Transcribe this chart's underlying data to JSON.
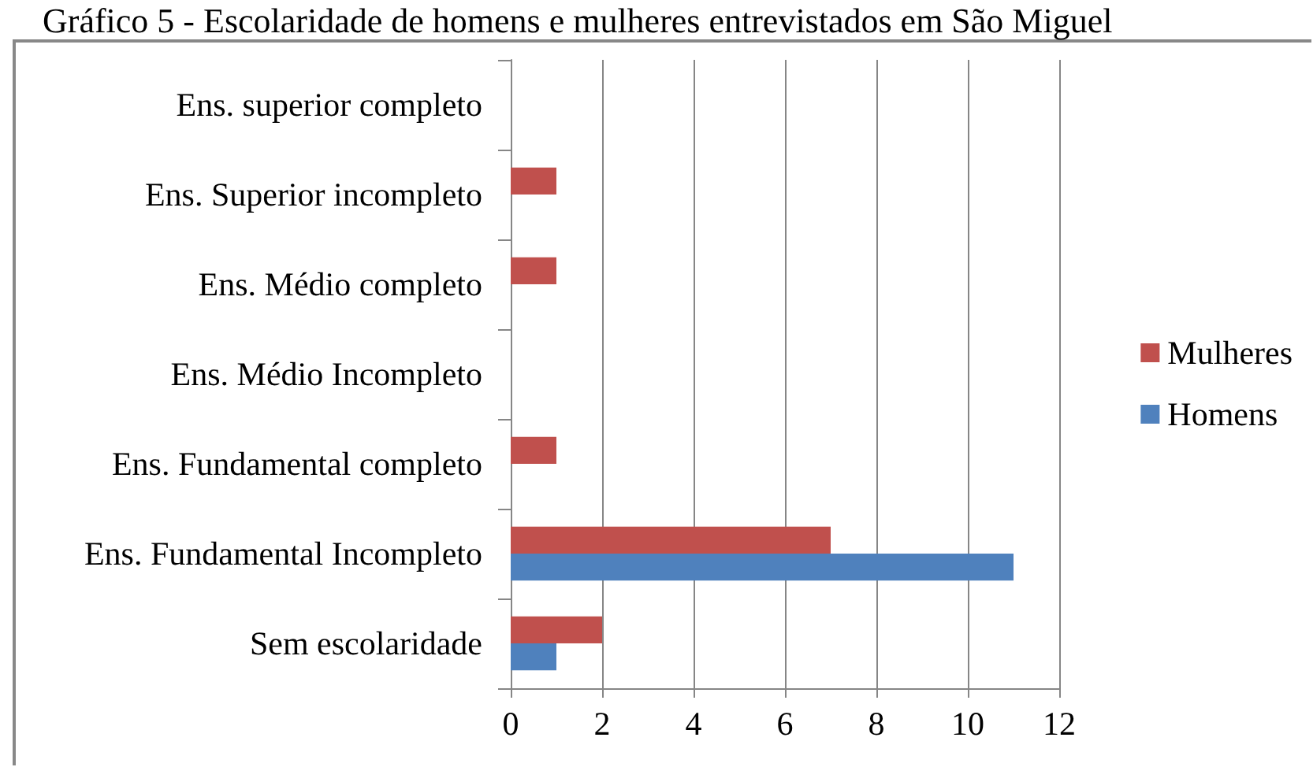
{
  "chart_data": {
    "type": "bar",
    "orientation": "horizontal",
    "title": "Gráfico 5 - Escolaridade de homens e mulheres entrevistados em São Miguel",
    "categories": [
      "Ens. superior completo",
      "Ens. Superior incompleto",
      "Ens. Médio completo",
      "Ens. Médio Incompleto",
      "Ens. Fundamental completo",
      "Ens. Fundamental Incompleto",
      "Sem escolaridade"
    ],
    "series": [
      {
        "name": "Homens",
        "color": "#4f81bd",
        "values": [
          0,
          0,
          0,
          0,
          0,
          11,
          1
        ]
      },
      {
        "name": "Mulheres",
        "color": "#c0504d",
        "values": [
          0,
          1,
          1,
          0,
          1,
          7,
          2
        ]
      }
    ],
    "xlim": [
      0,
      12
    ],
    "xticks": [
      0,
      2,
      4,
      6,
      8,
      10,
      12
    ],
    "grid": "x",
    "legend": "right"
  }
}
